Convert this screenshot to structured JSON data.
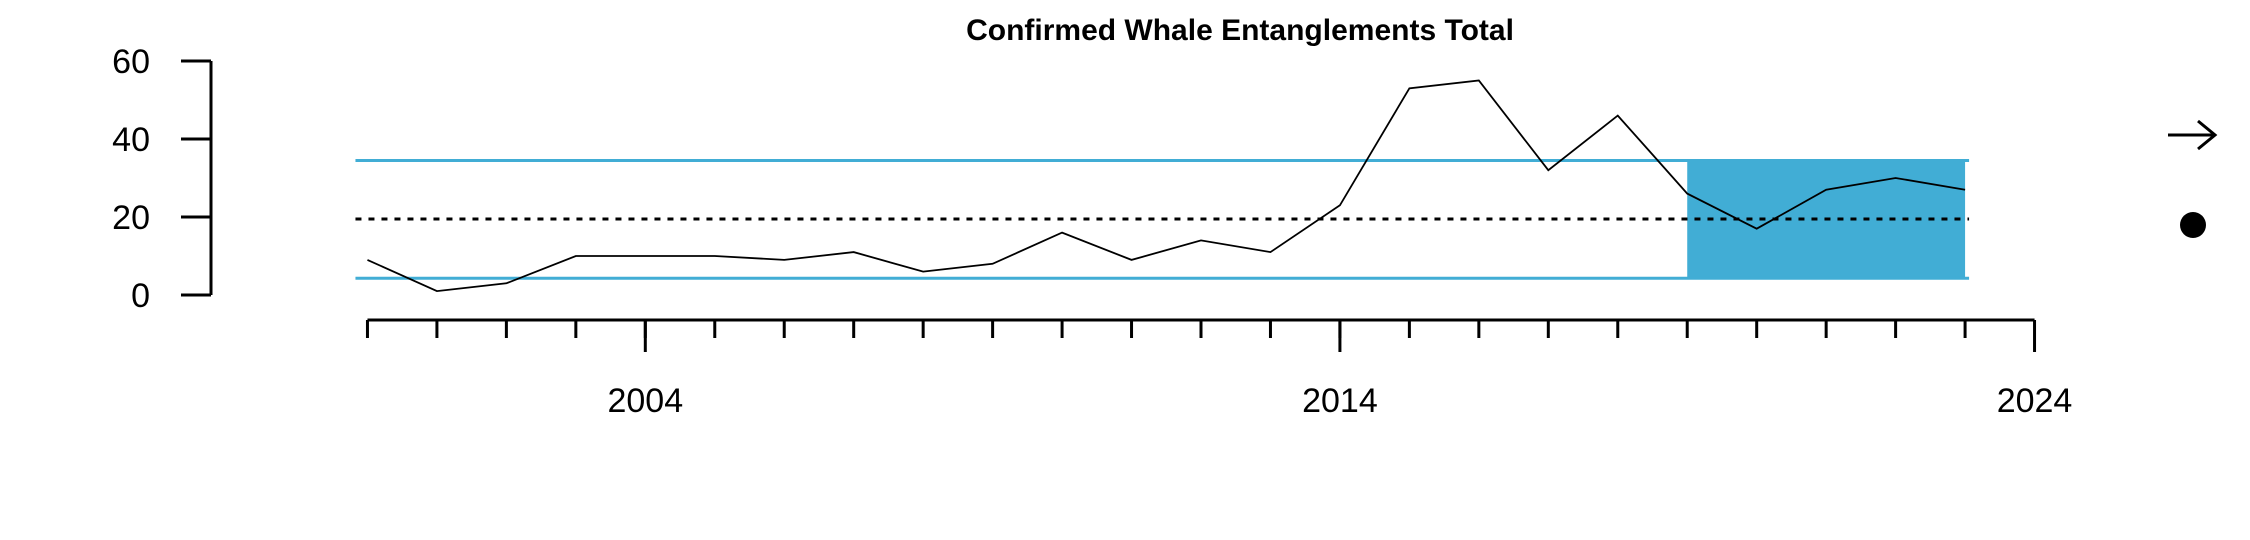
{
  "chart_data": {
    "type": "line",
    "title": "Confirmed Whale Entanglements Total",
    "xlabel": "",
    "ylabel": "",
    "x": [
      2000,
      2001,
      2002,
      2003,
      2004,
      2005,
      2006,
      2007,
      2008,
      2009,
      2010,
      2011,
      2012,
      2013,
      2014,
      2015,
      2016,
      2017,
      2018,
      2019,
      2020,
      2021,
      2022,
      2023
    ],
    "series": [
      {
        "values": [
          9,
          1,
          3,
          10,
          10,
          10,
          9,
          11,
          6,
          8,
          16,
          9,
          14,
          11,
          23,
          53,
          55,
          32,
          46,
          26,
          17,
          27,
          30,
          27
        ]
      }
    ],
    "ylim": [
      0,
      60
    ],
    "yticks": [
      0,
      20,
      40,
      60
    ],
    "xlim": [
      1999,
      2025
    ],
    "xticks_labeled": [
      2004,
      2014,
      2024
    ],
    "mean": 19.5,
    "upper_sd": 34.5,
    "lower_sd": 4.3,
    "highlight_range": [
      2019,
      2023
    ],
    "colors": {
      "line": "#000000",
      "sd_lines": "#41add5",
      "highlight": "#41add5",
      "mean_line": "#000000"
    },
    "indicators": {
      "trend": "arrow-right-icon",
      "mean_status": "filled-circle-icon"
    },
    "grid": false
  }
}
